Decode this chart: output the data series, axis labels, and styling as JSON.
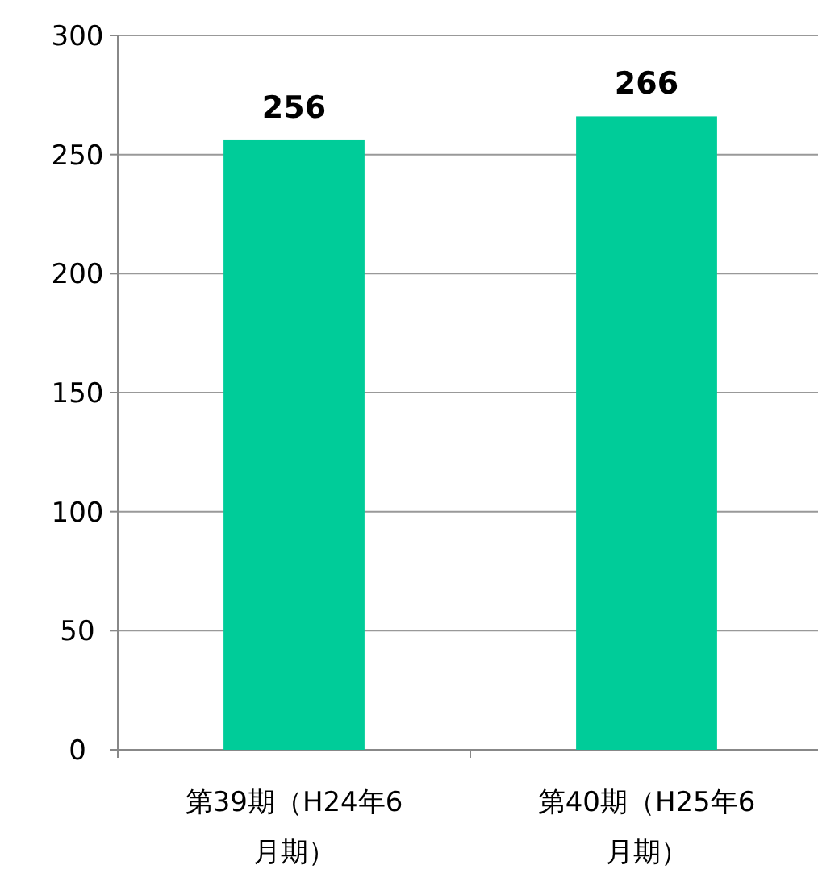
{
  "chart_data": {
    "type": "bar",
    "categories": [
      "第39期（H24年6月期）",
      "第40期（H25年6月期）"
    ],
    "values": [
      256,
      266
    ],
    "color": "#00cc99",
    "ylim": [
      0,
      300
    ],
    "yticks": [
      0,
      50,
      100,
      150,
      200,
      250,
      300
    ],
    "grid": "y",
    "data_labels": true
  }
}
